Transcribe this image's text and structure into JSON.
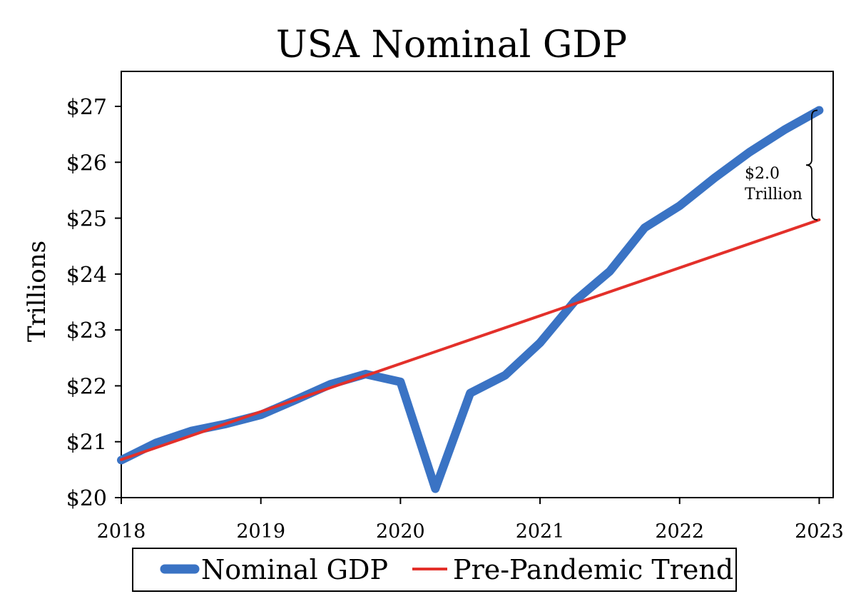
{
  "chart_data": {
    "type": "line",
    "title": "USA Nominal GDP",
    "xlabel": "",
    "ylabel": "Trillions",
    "xlim": [
      2018,
      2023.1
    ],
    "ylim": [
      20,
      27
    ],
    "x_ticks": [
      2018,
      2019,
      2020,
      2021,
      2022,
      2023
    ],
    "x_tick_labels": [
      "2018",
      "2019",
      "2020",
      "2021",
      "2022",
      "2023"
    ],
    "y_ticks": [
      20,
      21,
      22,
      23,
      24,
      25,
      26,
      27
    ],
    "y_tick_labels": [
      "$20",
      "$21",
      "$22",
      "$23",
      "$24",
      "$25",
      "$26",
      "$27"
    ],
    "grid": false,
    "legend_position": "bottom",
    "series": [
      {
        "name": "Nominal GDP",
        "color": "#3a73c4",
        "x": [
          2018.0,
          2018.25,
          2018.5,
          2018.75,
          2019.0,
          2019.25,
          2019.5,
          2019.75,
          2020.0,
          2020.25,
          2020.5,
          2020.75,
          2021.0,
          2021.25,
          2021.5,
          2021.75,
          2022.0,
          2022.25,
          2022.5,
          2022.75,
          2023.0
        ],
        "values": [
          20.67,
          20.98,
          21.19,
          21.32,
          21.48,
          21.75,
          22.03,
          22.21,
          22.07,
          20.16,
          21.87,
          22.19,
          22.77,
          23.52,
          24.05,
          24.83,
          25.22,
          25.72,
          26.18,
          26.58,
          26.93
        ]
      },
      {
        "name": "Pre-Pandemic Trend",
        "color": "#e3302a",
        "x": [
          2018.0,
          2023.0
        ],
        "values": [
          20.68,
          24.97
        ]
      }
    ],
    "annotations": [
      {
        "text_line1": "$2.0",
        "text_line2": "Trillion"
      }
    ]
  }
}
